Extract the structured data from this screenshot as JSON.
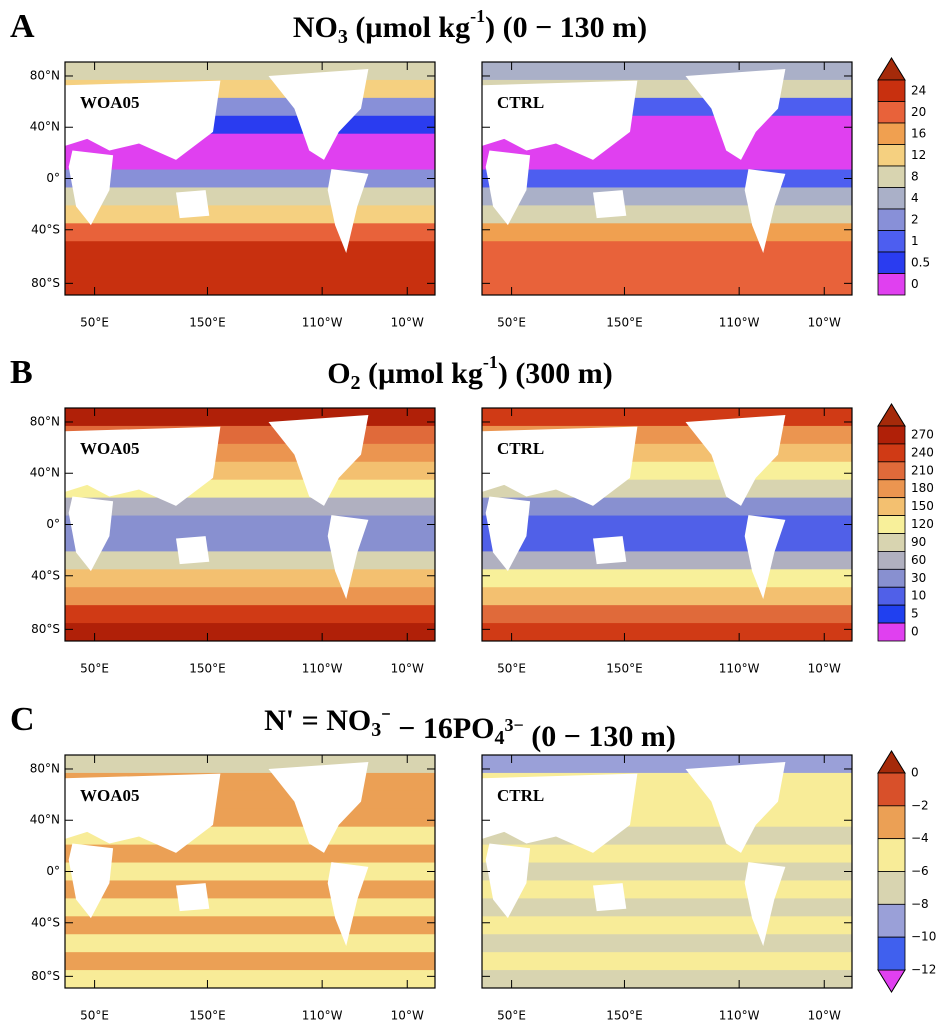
{
  "panels": [
    {
      "letter": "A",
      "title": [
        {
          "text": "NO",
          "style": "base"
        },
        {
          "text": "3",
          "style": "sub"
        },
        {
          "text": " (µmol kg",
          "style": "base"
        },
        {
          "text": "-1",
          "style": "sup"
        },
        {
          "text": ") (0 − 130 m)",
          "style": "base"
        }
      ],
      "maps": [
        {
          "label": "WOA05"
        },
        {
          "label": "CTRL"
        }
      ],
      "colorbar": {
        "levels": [
          "24",
          "20",
          "16",
          "12",
          "8",
          "4",
          "2",
          "1",
          "0.5",
          "0"
        ],
        "colors": [
          "#c8300f",
          "#e8623a",
          "#f0a050",
          "#f5d080",
          "#d8d4b0",
          "#aab0c8",
          "#8890d8",
          "#4d5ef0",
          "#2a3cf0",
          "#e040f0"
        ],
        "arrow_top": "#a52a0a"
      }
    },
    {
      "letter": "B",
      "title": [
        {
          "text": "O",
          "style": "base"
        },
        {
          "text": "2",
          "style": "sub"
        },
        {
          "text": " (µmol kg",
          "style": "base"
        },
        {
          "text": "-1",
          "style": "sup"
        },
        {
          "text": ") (300 m)",
          "style": "base"
        }
      ],
      "maps": [
        {
          "label": "WOA05"
        },
        {
          "label": "CTRL"
        }
      ],
      "colorbar": {
        "levels": [
          "270",
          "240",
          "210",
          "180",
          "150",
          "120",
          "90",
          "60",
          "30",
          "10",
          "5",
          "0"
        ],
        "colors": [
          "#b02008",
          "#d03a15",
          "#e06a3a",
          "#eb9550",
          "#f3c070",
          "#f8f09a",
          "#d8d4b0",
          "#b0b0c0",
          "#8890d0",
          "#5060e8",
          "#2040f0",
          "#e040f0"
        ],
        "arrow_top": "#a52a0a"
      }
    },
    {
      "letter": "C",
      "title": [
        {
          "text": "N' = NO",
          "style": "base"
        },
        {
          "text": "3",
          "style": "sub"
        },
        {
          "text": "⁻",
          "style": "sup"
        },
        {
          "text": " − 16PO",
          "style": "base"
        },
        {
          "text": "4",
          "style": "sub"
        },
        {
          "text": "3−",
          "style": "sup"
        },
        {
          "text": "  (0  − 130 m)",
          "style": "base"
        }
      ],
      "maps": [
        {
          "label": "WOA05"
        },
        {
          "label": "CTRL"
        }
      ],
      "colorbar": {
        "levels": [
          "0",
          "−2",
          "−4",
          "−6",
          "−8",
          "−10",
          "−12"
        ],
        "colors": [
          "#d8502a",
          "#eba055",
          "#f8ec98",
          "#d8d4b0",
          "#9aa0d8",
          "#4060ee"
        ],
        "arrow_top": "#a52a0a",
        "arrow_bottom": "#e040f0"
      }
    }
  ],
  "lat_labels": [
    "80°N",
    "40°N",
    "0°",
    "40°S",
    "80°S"
  ],
  "lon_labels": [
    "50°E",
    "150°E",
    "110°W",
    "10°W"
  ]
}
